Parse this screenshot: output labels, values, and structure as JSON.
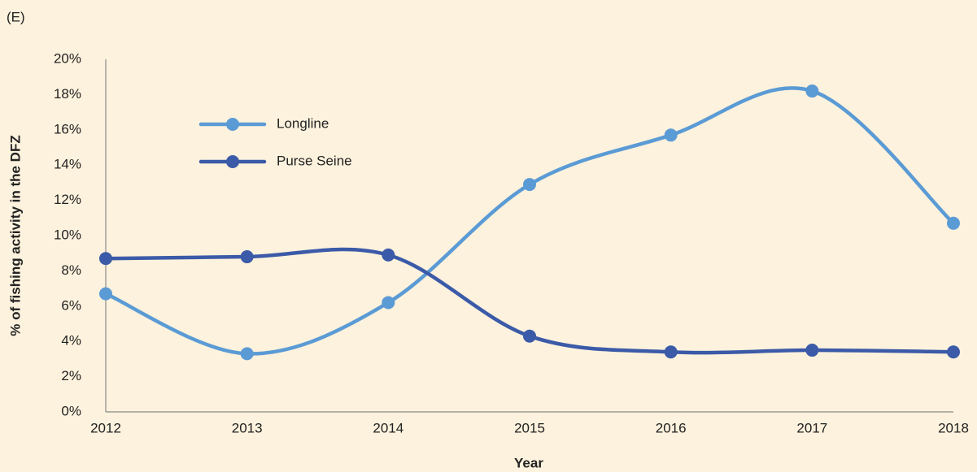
{
  "chart_data": {
    "type": "line",
    "panel_label": "(E)",
    "xlabel": "Year",
    "ylabel": "% of fishing activity in the DFZ",
    "categories": [
      "2012",
      "2013",
      "2014",
      "2015",
      "2016",
      "2017",
      "2018"
    ],
    "series": [
      {
        "name": "Longline",
        "color": "#5b9bd5",
        "values": [
          6.7,
          3.3,
          6.2,
          12.9,
          15.7,
          18.2,
          10.7
        ]
      },
      {
        "name": "Purse Seine",
        "color": "#3b5aa8",
        "values": [
          8.7,
          8.8,
          8.9,
          4.3,
          3.4,
          3.5,
          3.4
        ]
      }
    ],
    "ylim": [
      0,
      20
    ],
    "yticks": [
      {
        "value": 0,
        "label": "0%"
      },
      {
        "value": 2,
        "label": "2%"
      },
      {
        "value": 4,
        "label": "4%"
      },
      {
        "value": 6,
        "label": "6%"
      },
      {
        "value": 8,
        "label": "8%"
      },
      {
        "value": 10,
        "label": "10%"
      },
      {
        "value": 12,
        "label": "12%"
      },
      {
        "value": 14,
        "label": "14%"
      },
      {
        "value": 16,
        "label": "16%"
      },
      {
        "value": 18,
        "label": "18%"
      },
      {
        "value": 20,
        "label": "20%"
      }
    ],
    "smooth": true,
    "markers": true,
    "grid": false
  }
}
